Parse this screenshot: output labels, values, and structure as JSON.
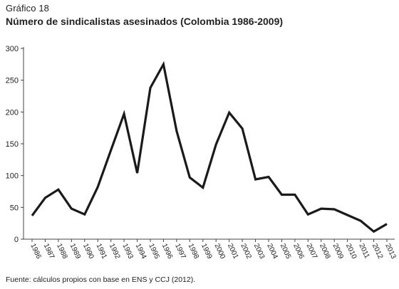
{
  "figure": {
    "caption": "Gráfico 18",
    "title": "Número de sindicalistas asesinados (Colombia 1986-2009)",
    "source": "Fuente: cálculos propios con base en ENS y CCJ (2012)."
  },
  "chart_data": {
    "type": "line",
    "title": "Número de sindicalistas asesinados (Colombia 1986-2009)",
    "xlabel": "",
    "ylabel": "",
    "ylim": [
      0,
      300
    ],
    "yticks": [
      0,
      50,
      100,
      150,
      200,
      250,
      300
    ],
    "grid": false,
    "legend": "none",
    "line_color": "#1a1a1a",
    "categories": [
      "1986",
      "1987",
      "1988",
      "1989",
      "1990",
      "1991",
      "1992",
      "1993",
      "1994",
      "1995",
      "1996",
      "1997",
      "1998",
      "1999",
      "2000",
      "2001",
      "2002",
      "2003",
      "2004",
      "2005",
      "2006",
      "2007",
      "2008",
      "2009",
      "2010",
      "2011",
      "2012",
      "2013"
    ],
    "series": [
      {
        "values": [
          37,
          65,
          78,
          48,
          39,
          82,
          140,
          197,
          104,
          238,
          275,
          170,
          97,
          81,
          149,
          199,
          174,
          94,
          98,
          70,
          70,
          39,
          48,
          47,
          38,
          29,
          12,
          24
        ]
      }
    ]
  }
}
